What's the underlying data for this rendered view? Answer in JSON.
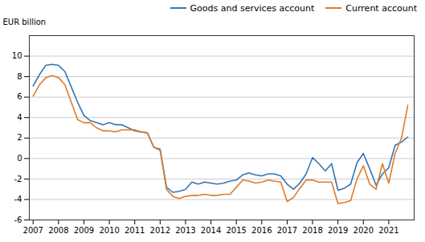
{
  "chart_data": {
    "type": "line",
    "y_label": "EUR billion",
    "x": [
      2007.0,
      2007.25,
      2007.5,
      2007.75,
      2008.0,
      2008.25,
      2008.5,
      2008.75,
      2009.0,
      2009.25,
      2009.5,
      2009.75,
      2010.0,
      2010.25,
      2010.5,
      2010.75,
      2011.0,
      2011.25,
      2011.5,
      2011.75,
      2012.0,
      2012.25,
      2012.5,
      2012.75,
      2013.0,
      2013.25,
      2013.5,
      2013.75,
      2014.0,
      2014.25,
      2014.5,
      2014.75,
      2015.0,
      2015.25,
      2015.5,
      2015.75,
      2016.0,
      2016.25,
      2016.5,
      2016.75,
      2017.0,
      2017.25,
      2017.5,
      2017.75,
      2018.0,
      2018.25,
      2018.5,
      2018.75,
      2019.0,
      2019.25,
      2019.5,
      2019.75,
      2020.0,
      2020.25,
      2020.5,
      2020.75,
      2021.0,
      2021.25,
      2021.5,
      2021.75
    ],
    "series": [
      {
        "name": "Goods and services account",
        "color": "#3575b5",
        "values": [
          7.1,
          8.2,
          9.1,
          9.2,
          9.1,
          8.5,
          7.0,
          5.5,
          4.2,
          3.7,
          3.5,
          3.3,
          3.5,
          3.3,
          3.3,
          3.0,
          2.7,
          2.6,
          2.5,
          1.1,
          0.9,
          -2.8,
          -3.3,
          -3.2,
          -3.0,
          -2.3,
          -2.5,
          -2.3,
          -2.4,
          -2.5,
          -2.4,
          -2.2,
          -2.1,
          -1.6,
          -1.4,
          -1.6,
          -1.7,
          -1.5,
          -1.5,
          -1.7,
          -2.5,
          -3.0,
          -2.4,
          -1.5,
          0.1,
          -0.5,
          -1.2,
          -0.5,
          -3.1,
          -2.9,
          -2.5,
          -0.4,
          0.5,
          -1.0,
          -2.6,
          -1.5,
          -0.9,
          1.3,
          1.6,
          2.1
        ]
      },
      {
        "name": "Current account",
        "color": "#e07b28",
        "values": [
          6.1,
          7.2,
          7.9,
          8.1,
          7.9,
          7.2,
          5.5,
          3.8,
          3.5,
          3.5,
          3.0,
          2.7,
          2.7,
          2.6,
          2.8,
          2.8,
          2.8,
          2.6,
          2.5,
          1.1,
          0.8,
          -3.0,
          -3.7,
          -3.9,
          -3.7,
          -3.6,
          -3.6,
          -3.5,
          -3.6,
          -3.6,
          -3.5,
          -3.5,
          -2.8,
          -2.1,
          -2.2,
          -2.4,
          -2.3,
          -2.1,
          -2.2,
          -2.3,
          -4.2,
          -3.8,
          -2.9,
          -2.1,
          -2.1,
          -2.3,
          -2.3,
          -2.3,
          -4.4,
          -4.3,
          -4.1,
          -2.0,
          -0.7,
          -2.5,
          -3.0,
          -0.5,
          -2.4,
          0.5,
          2.0,
          5.2
        ]
      }
    ],
    "xlim": [
      2006.85,
      2022.0
    ],
    "xticks": [
      2007,
      2008,
      2009,
      2010,
      2011,
      2012,
      2013,
      2014,
      2015,
      2016,
      2017,
      2018,
      2019,
      2020,
      2021
    ],
    "ylim": [
      -6,
      12
    ],
    "yticks": [
      -6,
      -4,
      -2,
      0,
      2,
      4,
      6,
      8,
      10
    ],
    "grid": true,
    "legend": "upper right"
  }
}
